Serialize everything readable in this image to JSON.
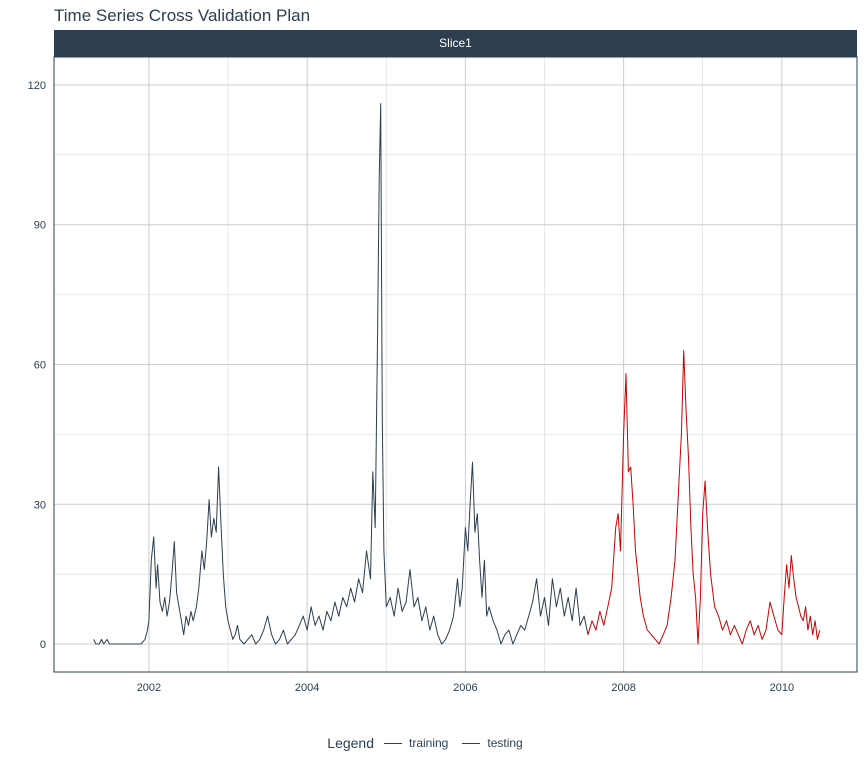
{
  "chart_data": {
    "type": "line",
    "title": "Time Series Cross Validation Plan",
    "facet_label": "Slice1",
    "xlabel": "",
    "ylabel": "",
    "xlim": [
      2000.8,
      2010.95
    ],
    "ylim": [
      -6,
      126
    ],
    "x_ticks": [
      2002,
      2004,
      2006,
      2008,
      2010
    ],
    "y_ticks": [
      0,
      30,
      60,
      90,
      120
    ],
    "grid": true,
    "legend_position": "bottom",
    "legend_title": "Legend",
    "series": [
      {
        "name": "training",
        "color": "#2c3e50",
        "points": [
          [
            2001.3,
            1
          ],
          [
            2001.33,
            0
          ],
          [
            2001.37,
            0
          ],
          [
            2001.4,
            1
          ],
          [
            2001.43,
            0
          ],
          [
            2001.47,
            1
          ],
          [
            2001.5,
            0
          ],
          [
            2001.55,
            0
          ],
          [
            2001.6,
            0
          ],
          [
            2001.7,
            0
          ],
          [
            2001.8,
            0
          ],
          [
            2001.9,
            0
          ],
          [
            2001.95,
            1
          ],
          [
            2001.98,
            3
          ],
          [
            2002.0,
            5
          ],
          [
            2002.03,
            18
          ],
          [
            2002.06,
            23
          ],
          [
            2002.09,
            12
          ],
          [
            2002.11,
            17
          ],
          [
            2002.14,
            9
          ],
          [
            2002.17,
            7
          ],
          [
            2002.2,
            10
          ],
          [
            2002.23,
            6
          ],
          [
            2002.26,
            9
          ],
          [
            2002.29,
            15
          ],
          [
            2002.32,
            22
          ],
          [
            2002.35,
            11
          ],
          [
            2002.38,
            8
          ],
          [
            2002.41,
            5
          ],
          [
            2002.44,
            2
          ],
          [
            2002.47,
            6
          ],
          [
            2002.5,
            4
          ],
          [
            2002.53,
            7
          ],
          [
            2002.56,
            5
          ],
          [
            2002.6,
            8
          ],
          [
            2002.63,
            12
          ],
          [
            2002.67,
            20
          ],
          [
            2002.7,
            16
          ],
          [
            2002.73,
            22
          ],
          [
            2002.76,
            31
          ],
          [
            2002.79,
            23
          ],
          [
            2002.82,
            27
          ],
          [
            2002.85,
            24
          ],
          [
            2002.88,
            38
          ],
          [
            2002.91,
            26
          ],
          [
            2002.94,
            15
          ],
          [
            2002.97,
            8
          ],
          [
            2003.0,
            5
          ],
          [
            2003.03,
            3
          ],
          [
            2003.06,
            1
          ],
          [
            2003.09,
            2
          ],
          [
            2003.12,
            4
          ],
          [
            2003.15,
            1
          ],
          [
            2003.2,
            0
          ],
          [
            2003.25,
            1
          ],
          [
            2003.3,
            2
          ],
          [
            2003.35,
            0
          ],
          [
            2003.4,
            1
          ],
          [
            2003.45,
            3
          ],
          [
            2003.5,
            6
          ],
          [
            2003.55,
            2
          ],
          [
            2003.6,
            0
          ],
          [
            2003.65,
            1
          ],
          [
            2003.7,
            3
          ],
          [
            2003.75,
            0
          ],
          [
            2003.8,
            1
          ],
          [
            2003.85,
            2
          ],
          [
            2003.9,
            4
          ],
          [
            2003.95,
            6
          ],
          [
            2004.0,
            3
          ],
          [
            2004.05,
            8
          ],
          [
            2004.1,
            4
          ],
          [
            2004.15,
            6
          ],
          [
            2004.2,
            3
          ],
          [
            2004.25,
            7
          ],
          [
            2004.3,
            5
          ],
          [
            2004.35,
            9
          ],
          [
            2004.4,
            6
          ],
          [
            2004.45,
            10
          ],
          [
            2004.5,
            8
          ],
          [
            2004.55,
            12
          ],
          [
            2004.6,
            9
          ],
          [
            2004.65,
            14
          ],
          [
            2004.7,
            11
          ],
          [
            2004.75,
            20
          ],
          [
            2004.8,
            14
          ],
          [
            2004.83,
            37
          ],
          [
            2004.86,
            25
          ],
          [
            2004.89,
            67
          ],
          [
            2004.91,
            100
          ],
          [
            2004.93,
            116
          ],
          [
            2004.95,
            48
          ],
          [
            2004.97,
            20
          ],
          [
            2005.0,
            8
          ],
          [
            2005.05,
            10
          ],
          [
            2005.1,
            6
          ],
          [
            2005.15,
            12
          ],
          [
            2005.2,
            7
          ],
          [
            2005.25,
            9
          ],
          [
            2005.3,
            16
          ],
          [
            2005.35,
            8
          ],
          [
            2005.4,
            10
          ],
          [
            2005.45,
            5
          ],
          [
            2005.5,
            8
          ],
          [
            2005.55,
            3
          ],
          [
            2005.6,
            6
          ],
          [
            2005.65,
            2
          ],
          [
            2005.7,
            0
          ],
          [
            2005.75,
            1
          ],
          [
            2005.8,
            3
          ],
          [
            2005.85,
            6
          ],
          [
            2005.9,
            14
          ],
          [
            2005.93,
            8
          ],
          [
            2005.96,
            12
          ],
          [
            2006.0,
            25
          ],
          [
            2006.03,
            20
          ],
          [
            2006.06,
            30
          ],
          [
            2006.09,
            39
          ],
          [
            2006.12,
            24
          ],
          [
            2006.15,
            28
          ],
          [
            2006.18,
            18
          ],
          [
            2006.21,
            10
          ],
          [
            2006.24,
            18
          ],
          [
            2006.27,
            6
          ],
          [
            2006.3,
            8
          ],
          [
            2006.35,
            5
          ],
          [
            2006.4,
            3
          ],
          [
            2006.45,
            0
          ],
          [
            2006.5,
            2
          ],
          [
            2006.55,
            3
          ],
          [
            2006.6,
            0
          ],
          [
            2006.65,
            2
          ],
          [
            2006.7,
            4
          ],
          [
            2006.75,
            3
          ],
          [
            2006.8,
            6
          ],
          [
            2006.85,
            9
          ],
          [
            2006.9,
            14
          ],
          [
            2006.95,
            6
          ],
          [
            2007.0,
            10
          ],
          [
            2007.05,
            4
          ],
          [
            2007.1,
            14
          ],
          [
            2007.15,
            8
          ],
          [
            2007.2,
            12
          ],
          [
            2007.25,
            6
          ],
          [
            2007.3,
            10
          ],
          [
            2007.35,
            5
          ],
          [
            2007.4,
            12
          ],
          [
            2007.45,
            4
          ],
          [
            2007.5,
            6
          ],
          [
            2007.55,
            2
          ]
        ]
      },
      {
        "name": "testing",
        "color": "#cc0000",
        "points": [
          [
            2007.55,
            2
          ],
          [
            2007.6,
            5
          ],
          [
            2007.65,
            3
          ],
          [
            2007.7,
            7
          ],
          [
            2007.75,
            4
          ],
          [
            2007.8,
            8
          ],
          [
            2007.85,
            12
          ],
          [
            2007.9,
            25
          ],
          [
            2007.93,
            28
          ],
          [
            2007.96,
            20
          ],
          [
            2008.0,
            45
          ],
          [
            2008.03,
            58
          ],
          [
            2008.06,
            37
          ],
          [
            2008.09,
            38
          ],
          [
            2008.12,
            30
          ],
          [
            2008.15,
            20
          ],
          [
            2008.18,
            15
          ],
          [
            2008.21,
            10
          ],
          [
            2008.25,
            6
          ],
          [
            2008.3,
            3
          ],
          [
            2008.35,
            2
          ],
          [
            2008.4,
            1
          ],
          [
            2008.45,
            0
          ],
          [
            2008.5,
            2
          ],
          [
            2008.55,
            4
          ],
          [
            2008.6,
            10
          ],
          [
            2008.65,
            18
          ],
          [
            2008.7,
            35
          ],
          [
            2008.73,
            45
          ],
          [
            2008.76,
            63
          ],
          [
            2008.79,
            50
          ],
          [
            2008.82,
            40
          ],
          [
            2008.85,
            25
          ],
          [
            2008.88,
            15
          ],
          [
            2008.91,
            10
          ],
          [
            2008.94,
            0
          ],
          [
            2008.97,
            10
          ],
          [
            2009.0,
            28
          ],
          [
            2009.03,
            35
          ],
          [
            2009.06,
            25
          ],
          [
            2009.1,
            15
          ],
          [
            2009.15,
            8
          ],
          [
            2009.2,
            6
          ],
          [
            2009.25,
            3
          ],
          [
            2009.3,
            5
          ],
          [
            2009.35,
            2
          ],
          [
            2009.4,
            4
          ],
          [
            2009.45,
            2
          ],
          [
            2009.5,
            0
          ],
          [
            2009.55,
            3
          ],
          [
            2009.6,
            5
          ],
          [
            2009.65,
            2
          ],
          [
            2009.7,
            4
          ],
          [
            2009.75,
            1
          ],
          [
            2009.8,
            3
          ],
          [
            2009.85,
            9
          ],
          [
            2009.9,
            6
          ],
          [
            2009.95,
            3
          ],
          [
            2010.0,
            2
          ],
          [
            2010.03,
            10
          ],
          [
            2010.06,
            17
          ],
          [
            2010.09,
            12
          ],
          [
            2010.12,
            19
          ],
          [
            2010.15,
            14
          ],
          [
            2010.18,
            10
          ],
          [
            2010.21,
            8
          ],
          [
            2010.24,
            6
          ],
          [
            2010.27,
            5
          ],
          [
            2010.3,
            8
          ],
          [
            2010.33,
            3
          ],
          [
            2010.36,
            6
          ],
          [
            2010.39,
            2
          ],
          [
            2010.42,
            5
          ],
          [
            2010.45,
            1
          ],
          [
            2010.48,
            3
          ]
        ]
      }
    ]
  }
}
